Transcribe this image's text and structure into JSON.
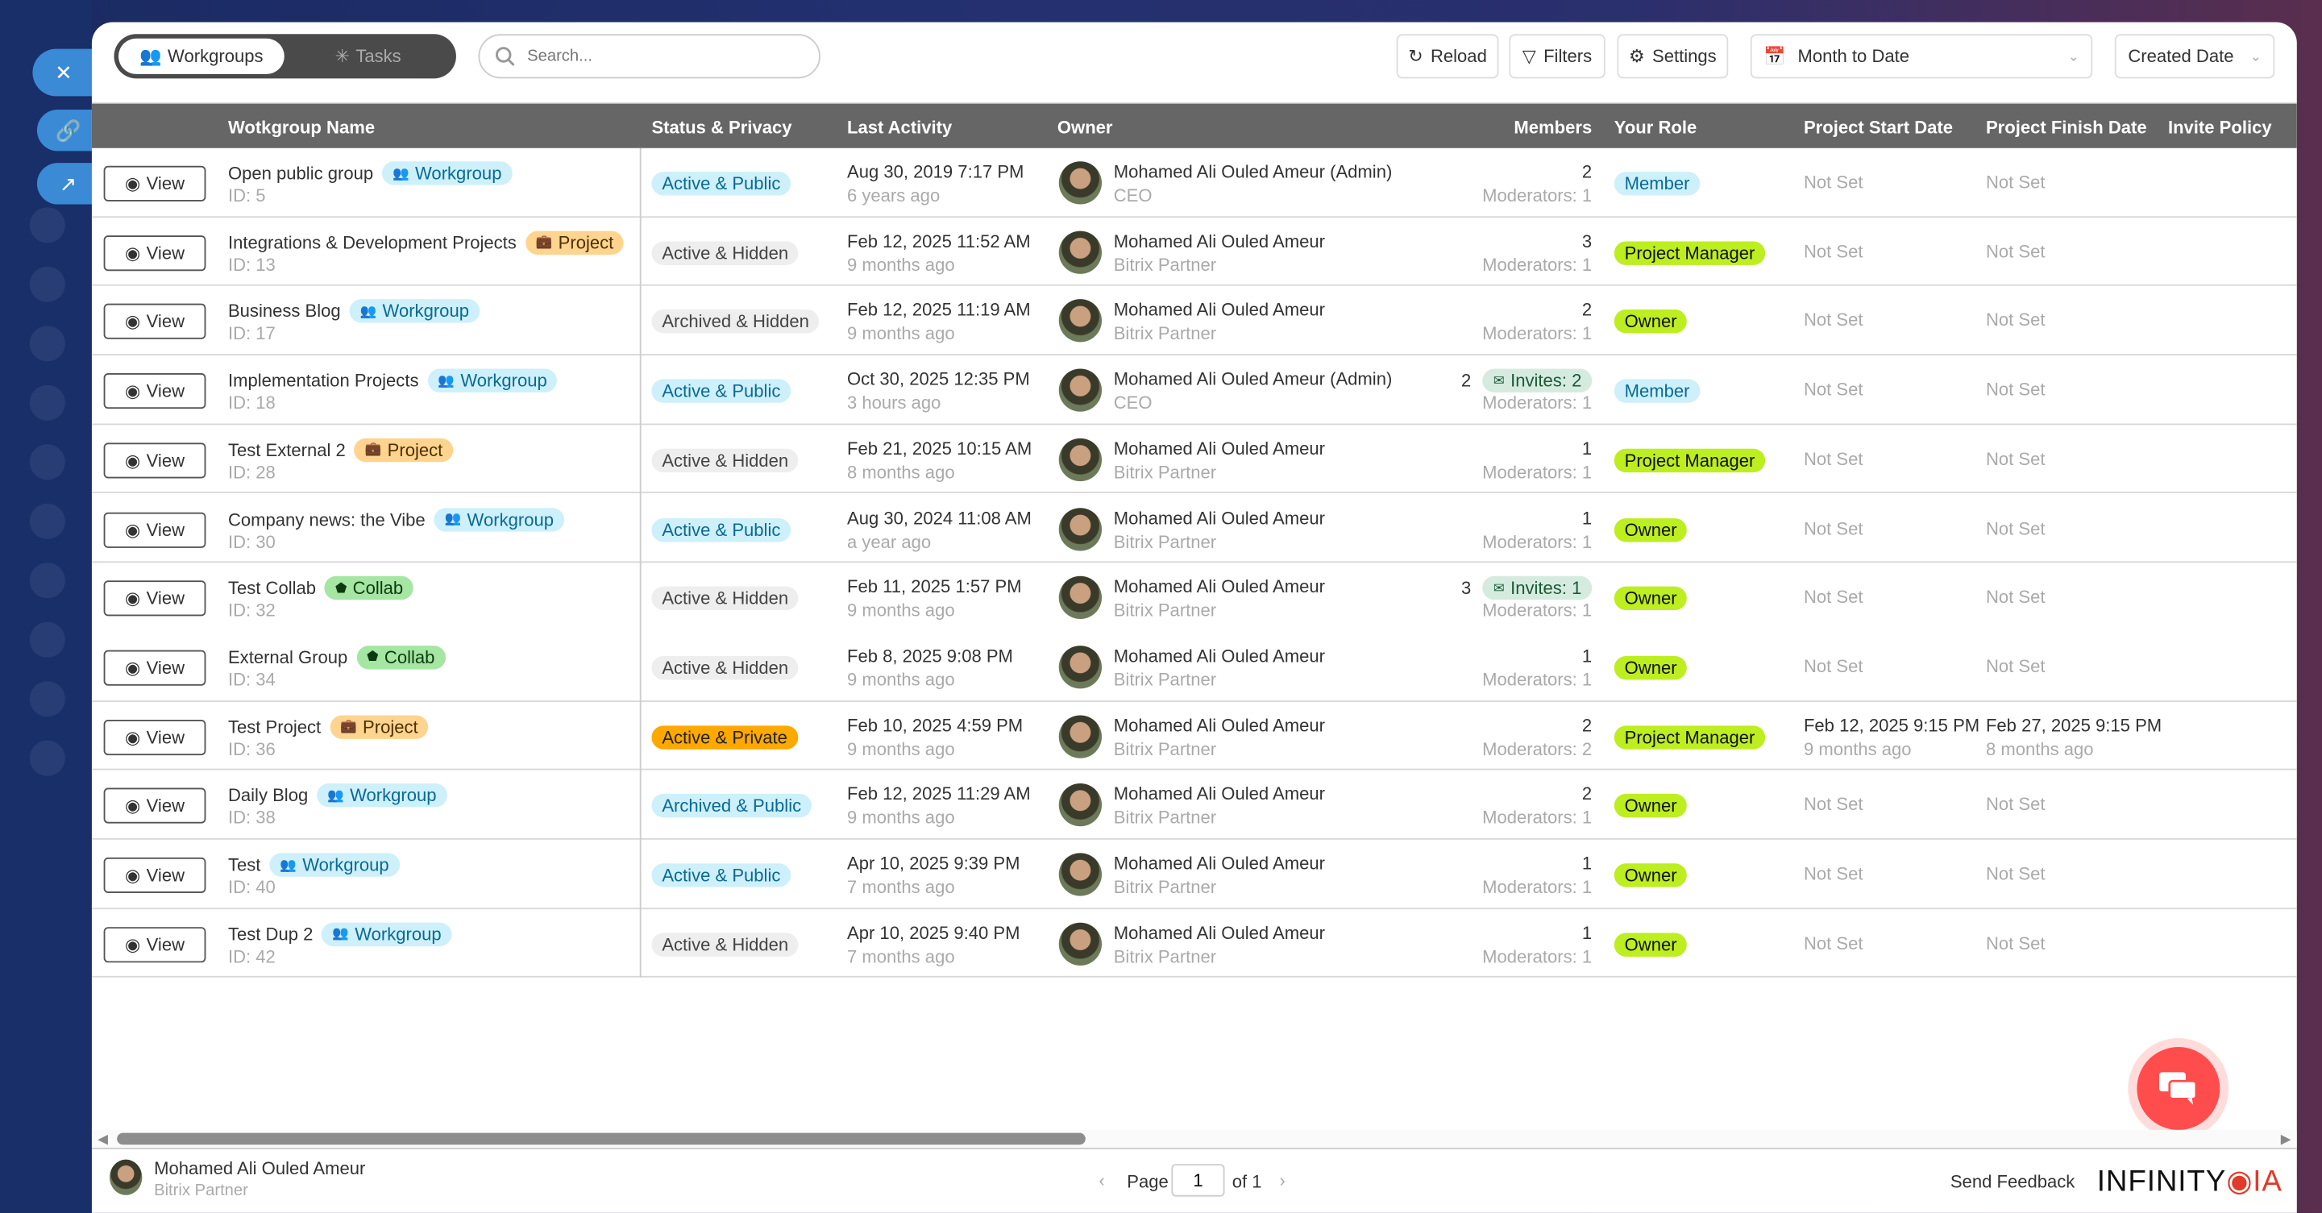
{
  "colors": {
    "accent": "#3a8ad6",
    "header_bg": "#666666",
    "chat": "#ff4d4d",
    "role_green": "#bdee20",
    "private": "#ffa800"
  },
  "tabs": [
    {
      "label": "Workgroups",
      "icon": "users-icon",
      "active": true
    },
    {
      "label": "Tasks",
      "icon": "spinner-icon",
      "active": false
    }
  ],
  "search": {
    "placeholder": "Search...",
    "value": ""
  },
  "toolbar": {
    "reload": "Reload",
    "filters": "Filters",
    "settings": "Settings",
    "period": "Month to Date",
    "sort": "Created Date"
  },
  "columns": [
    "Wotkgroup Name",
    "Status & Privacy",
    "Last Activity",
    "Owner",
    "Members",
    "Your Role",
    "Project Start Date",
    "Project Finish Date",
    "Invite Policy"
  ],
  "view_label": "View",
  "rows": [
    {
      "name": "Open public group",
      "type": "Workgroup",
      "id": "ID: 5",
      "status": "Active & Public",
      "activity": "Aug 30, 2019 7:17 PM",
      "ago": "6 years ago",
      "owner": "Mohamed Ali Ouled Ameur (Admin)",
      "owner_title": "CEO",
      "members": "2",
      "invites": "",
      "moderators": "Moderators: 1",
      "role": "Member",
      "start": "Not Set",
      "start_ago": "",
      "finish": "Not Set",
      "finish_ago": ""
    },
    {
      "name": "Integrations & Development Projects",
      "type": "Project",
      "id": "ID: 13",
      "status": "Active & Hidden",
      "activity": "Feb 12, 2025 11:52 AM",
      "ago": "9 months ago",
      "owner": "Mohamed Ali Ouled Ameur",
      "owner_title": "Bitrix Partner",
      "members": "3",
      "invites": "",
      "moderators": "Moderators: 1",
      "role": "Project Manager",
      "start": "Not Set",
      "start_ago": "",
      "finish": "Not Set",
      "finish_ago": ""
    },
    {
      "name": "Business Blog",
      "type": "Workgroup",
      "id": "ID: 17",
      "status": "Archived & Hidden",
      "activity": "Feb 12, 2025 11:19 AM",
      "ago": "9 months ago",
      "owner": "Mohamed Ali Ouled Ameur",
      "owner_title": "Bitrix Partner",
      "members": "2",
      "invites": "",
      "moderators": "Moderators: 1",
      "role": "Owner",
      "start": "Not Set",
      "start_ago": "",
      "finish": "Not Set",
      "finish_ago": ""
    },
    {
      "name": "Implementation Projects",
      "type": "Workgroup",
      "id": "ID: 18",
      "status": "Active & Public",
      "activity": "Oct 30, 2025 12:35 PM",
      "ago": "3 hours ago",
      "owner": "Mohamed Ali Ouled Ameur (Admin)",
      "owner_title": "CEO",
      "members": "2",
      "invites": "Invites: 2",
      "moderators": "Moderators: 1",
      "role": "Member",
      "start": "Not Set",
      "start_ago": "",
      "finish": "Not Set",
      "finish_ago": ""
    },
    {
      "name": "Test External 2",
      "type": "Project",
      "id": "ID: 28",
      "status": "Active & Hidden",
      "activity": "Feb 21, 2025 10:15 AM",
      "ago": "8 months ago",
      "owner": "Mohamed Ali Ouled Ameur",
      "owner_title": "Bitrix Partner",
      "members": "1",
      "invites": "",
      "moderators": "Moderators: 1",
      "role": "Project Manager",
      "start": "Not Set",
      "start_ago": "",
      "finish": "Not Set",
      "finish_ago": ""
    },
    {
      "name": "Company news: the Vibe",
      "type": "Workgroup",
      "id": "ID: 30",
      "status": "Active & Public",
      "activity": "Aug 30, 2024 11:08 AM",
      "ago": "a year ago",
      "owner": "Mohamed Ali Ouled Ameur",
      "owner_title": "Bitrix Partner",
      "members": "1",
      "invites": "",
      "moderators": "Moderators: 1",
      "role": "Owner",
      "start": "Not Set",
      "start_ago": "",
      "finish": "Not Set",
      "finish_ago": ""
    },
    {
      "name": "Test Collab",
      "type": "Collab",
      "id": "ID: 32",
      "status": "Active & Hidden",
      "activity": "Feb 11, 2025 1:57 PM",
      "ago": "9 months ago",
      "owner": "Mohamed Ali Ouled Ameur",
      "owner_title": "Bitrix Partner",
      "members": "3",
      "invites": "Invites: 1",
      "moderators": "Moderators: 1",
      "role": "Owner",
      "start": "Not Set",
      "start_ago": "",
      "finish": "Not Set",
      "finish_ago": ""
    },
    {
      "name": "External Group",
      "type": "Collab",
      "id": "ID: 34",
      "status": "Active & Hidden",
      "activity": "Feb 8, 2025 9:08 PM",
      "ago": "9 months ago",
      "owner": "Mohamed Ali Ouled Ameur",
      "owner_title": "Bitrix Partner",
      "members": "1",
      "invites": "",
      "moderators": "Moderators: 1",
      "role": "Owner",
      "start": "Not Set",
      "start_ago": "",
      "finish": "Not Set",
      "finish_ago": ""
    },
    {
      "name": "Test Project",
      "type": "Project",
      "id": "ID: 36",
      "status": "Active & Private",
      "activity": "Feb 10, 2025 4:59 PM",
      "ago": "9 months ago",
      "owner": "Mohamed Ali Ouled Ameur",
      "owner_title": "Bitrix Partner",
      "members": "2",
      "invites": "",
      "moderators": "Moderators: 2",
      "role": "Project Manager",
      "start": "Feb 12, 2025 9:15 PM",
      "start_ago": "9 months ago",
      "finish": "Feb 27, 2025 9:15 PM",
      "finish_ago": "8 months ago"
    },
    {
      "name": "Daily Blog",
      "type": "Workgroup",
      "id": "ID: 38",
      "status": "Archived & Public",
      "activity": "Feb 12, 2025 11:29 AM",
      "ago": "9 months ago",
      "owner": "Mohamed Ali Ouled Ameur",
      "owner_title": "Bitrix Partner",
      "members": "2",
      "invites": "",
      "moderators": "Moderators: 1",
      "role": "Owner",
      "start": "Not Set",
      "start_ago": "",
      "finish": "Not Set",
      "finish_ago": ""
    },
    {
      "name": "Test",
      "type": "Workgroup",
      "id": "ID: 40",
      "status": "Active & Public",
      "activity": "Apr 10, 2025 9:39 PM",
      "ago": "7 months ago",
      "owner": "Mohamed Ali Ouled Ameur",
      "owner_title": "Bitrix Partner",
      "members": "1",
      "invites": "",
      "moderators": "Moderators: 1",
      "role": "Owner",
      "start": "Not Set",
      "start_ago": "",
      "finish": "Not Set",
      "finish_ago": ""
    },
    {
      "name": "Test Dup 2",
      "type": "Workgroup",
      "id": "ID: 42",
      "status": "Active & Hidden",
      "activity": "Apr 10, 2025 9:40 PM",
      "ago": "7 months ago",
      "owner": "Mohamed Ali Ouled Ameur",
      "owner_title": "Bitrix Partner",
      "members": "1",
      "invites": "",
      "moderators": "Moderators: 1",
      "role": "Owner",
      "start": "Not Set",
      "start_ago": "",
      "finish": "Not Set",
      "finish_ago": ""
    }
  ],
  "footer": {
    "user": "Mohamed Ali Ouled Ameur",
    "user_title": "Bitrix Partner",
    "page_label": "Page",
    "page": "1",
    "of": "of 1",
    "feedback": "Send Feedback",
    "logo": "INFINITYOIA"
  }
}
